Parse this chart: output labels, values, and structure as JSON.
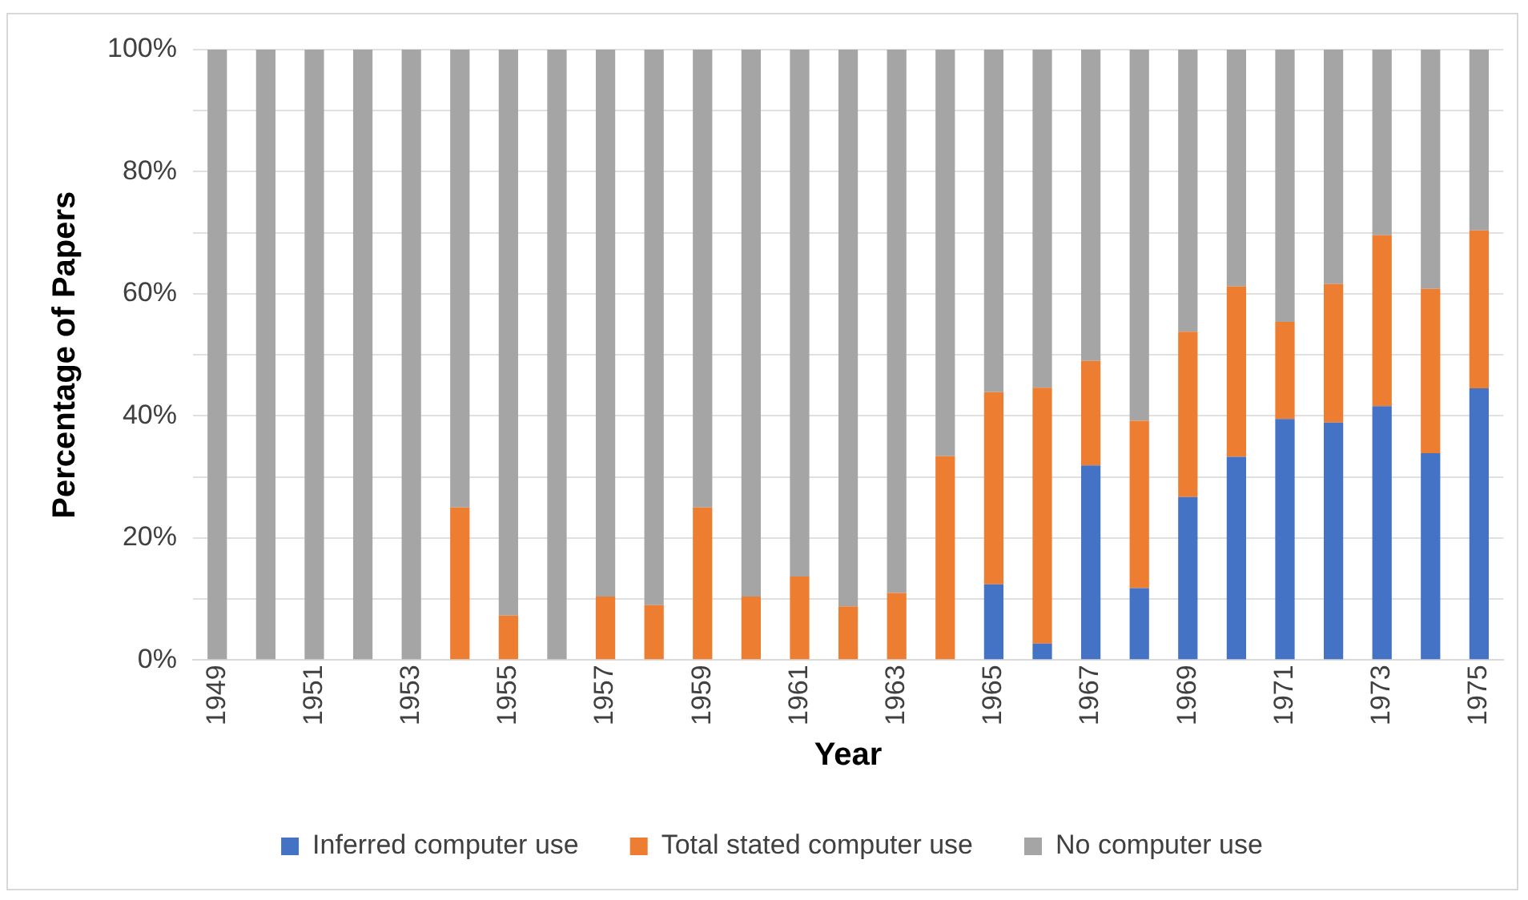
{
  "chart_data": {
    "type": "bar",
    "stacked": true,
    "xlabel": "Year",
    "ylabel": "Percentage of Papers",
    "categories": [
      "1949",
      null,
      "1951",
      null,
      "1953",
      null,
      "1955",
      null,
      "1957",
      null,
      "1959",
      null,
      "1961",
      null,
      "1963",
      null,
      "1965",
      null,
      "1967",
      null,
      "1969",
      null,
      "1971",
      null,
      "1973",
      null,
      "1975"
    ],
    "series": [
      {
        "name": "Inferred computer use",
        "color": "#4472c4",
        "values": [
          0,
          0,
          0,
          0,
          0,
          0,
          0,
          0,
          0,
          0,
          0,
          0,
          0,
          0,
          0,
          0,
          12.4,
          2.7,
          31.9,
          11.8,
          26.7,
          33.3,
          39.5,
          38.9,
          41.6,
          33.9,
          44.5
        ]
      },
      {
        "name": "Total stated computer use",
        "color": "#ed7d31",
        "values": [
          0,
          0,
          0,
          0,
          0,
          25,
          7.3,
          0,
          10.4,
          9,
          25,
          10.4,
          13.7,
          8.8,
          11,
          33.4,
          31.5,
          41.9,
          17.1,
          27.4,
          27.1,
          27.9,
          15.9,
          22.7,
          28,
          26.9,
          25.9
        ]
      },
      {
        "name": "No computer use",
        "color": "#a5a5a5",
        "values": [
          100,
          100,
          100,
          100,
          100,
          75,
          92.7,
          100,
          89.6,
          91,
          75,
          89.6,
          86.3,
          91.2,
          89,
          66.6,
          56.1,
          55.4,
          51,
          60.8,
          46.2,
          38.8,
          44.6,
          38.4,
          30.4,
          39.2,
          29.6
        ]
      }
    ],
    "ylim": [
      0,
      100
    ],
    "yticks": [
      {
        "value": 0,
        "label": "0%"
      },
      {
        "value": 10,
        "label": null
      },
      {
        "value": 20,
        "label": "20%"
      },
      {
        "value": 30,
        "label": null
      },
      {
        "value": 40,
        "label": "40%"
      },
      {
        "value": 50,
        "label": null
      },
      {
        "value": 60,
        "label": "60%"
      },
      {
        "value": 70,
        "label": null
      },
      {
        "value": 80,
        "label": "80%"
      },
      {
        "value": 90,
        "label": null
      },
      {
        "value": 100,
        "label": "100%"
      }
    ],
    "grid": "y",
    "legend": "bottom"
  }
}
